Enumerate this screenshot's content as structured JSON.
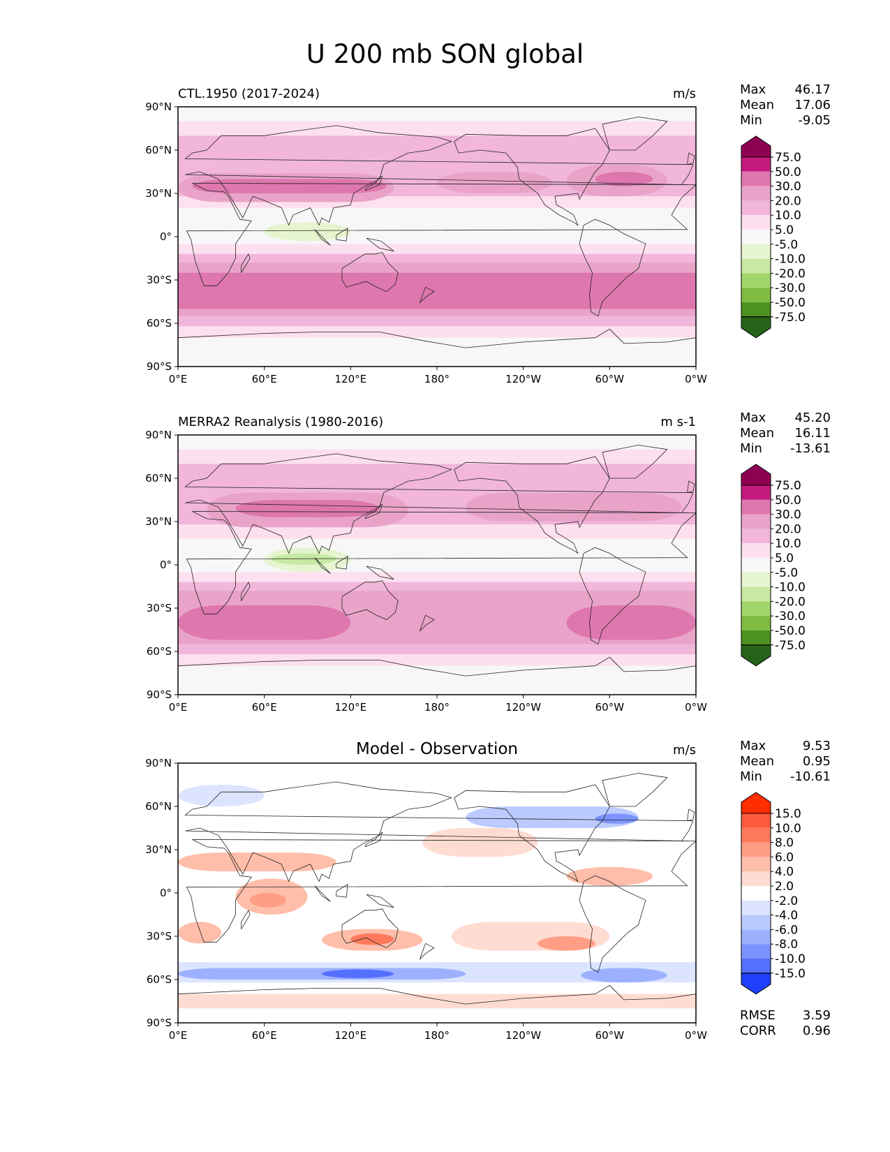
{
  "title": "U 200 mb SON global",
  "x_ticks": [
    "0°E",
    "60°E",
    "120°E",
    "180°",
    "120°W",
    "60°W",
    "0°W"
  ],
  "y_ticks": [
    "90°N",
    "60°N",
    "30°N",
    "0°",
    "30°S",
    "60°S",
    "90°S"
  ],
  "panels": [
    {
      "title": "CTL.1950 (2017-2024)",
      "units": "m/s",
      "stats": {
        "max_label": "Max",
        "max": "46.17",
        "mean_label": "Mean",
        "mean": "17.06",
        "min_label": "Min",
        "min": "-9.05"
      },
      "colorbar": {
        "labels": [
          "75.0",
          "50.0",
          "30.0",
          "20.0",
          "10.0",
          "5.0",
          "-5.0",
          "-10.0",
          "-20.0",
          "-30.0",
          "-50.0",
          "-75.0"
        ],
        "colors": [
          "#8e0152",
          "#c51b7d",
          "#de77ae",
          "#e9a3c9",
          "#f1b6da",
          "#fde0ef",
          "#f7f7f7",
          "#e6f5d0",
          "#c7e9a4",
          "#a1d76a",
          "#7fbc41",
          "#4d9221",
          "#276419"
        ]
      }
    },
    {
      "title": "MERRA2 Reanalysis (1980-2016)",
      "units": "m s-1",
      "stats": {
        "max_label": "Max",
        "max": "45.20",
        "mean_label": "Mean",
        "mean": "16.11",
        "min_label": "Min",
        "min": "-13.61"
      },
      "colorbar": {
        "labels": [
          "75.0",
          "50.0",
          "30.0",
          "20.0",
          "10.0",
          "5.0",
          "-5.0",
          "-10.0",
          "-20.0",
          "-30.0",
          "-50.0",
          "-75.0"
        ],
        "colors": [
          "#8e0152",
          "#c51b7d",
          "#de77ae",
          "#e9a3c9",
          "#f1b6da",
          "#fde0ef",
          "#f7f7f7",
          "#e6f5d0",
          "#c7e9a4",
          "#a1d76a",
          "#7fbc41",
          "#4d9221",
          "#276419"
        ]
      }
    },
    {
      "title": "Model - Observation",
      "units": "m/s",
      "stats": {
        "max_label": "Max",
        "max": "9.53",
        "mean_label": "Mean",
        "mean": "0.95",
        "min_label": "Min",
        "min": "-10.61"
      },
      "extra": {
        "rmse_label": "RMSE",
        "rmse": "3.59",
        "corr_label": "CORR",
        "corr": "0.96"
      },
      "colorbar": {
        "labels": [
          "15.0",
          "10.0",
          "8.0",
          "6.0",
          "4.0",
          "2.0",
          "-2.0",
          "-4.0",
          "-6.0",
          "-8.0",
          "-10.0",
          "-15.0"
        ],
        "colors": [
          "#ff2d00",
          "#ff5a3c",
          "#ff7a5c",
          "#ff9d85",
          "#ffbeaa",
          "#ffdcd2",
          "#ffffff",
          "#dce4ff",
          "#bccbff",
          "#9db0ff",
          "#7c93ff",
          "#5470ff",
          "#1f3fff"
        ]
      }
    }
  ]
}
